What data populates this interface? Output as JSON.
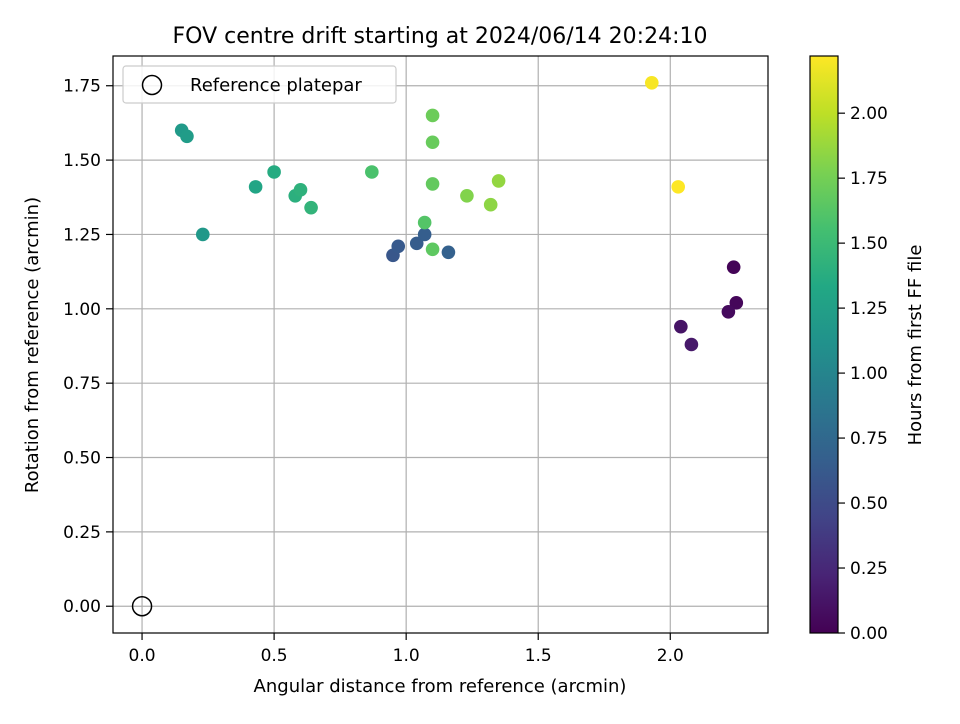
{
  "chart_data": {
    "type": "scatter",
    "title": "FOV centre drift starting at 2024/06/14 20:24:10",
    "xlabel": "Angular distance from reference (arcmin)",
    "ylabel": "Rotation from reference (arcmin)",
    "xlim": [
      -0.11,
      2.37
    ],
    "ylim": [
      -0.09,
      1.85
    ],
    "xticks": [
      "0.0",
      "0.5",
      "1.0",
      "1.5",
      "2.0"
    ],
    "xtick_values": [
      0.0,
      0.5,
      1.0,
      1.5,
      2.0
    ],
    "yticks": [
      "0.00",
      "0.25",
      "0.50",
      "0.75",
      "1.00",
      "1.25",
      "1.50",
      "1.75"
    ],
    "ytick_values": [
      0.0,
      0.25,
      0.5,
      0.75,
      1.0,
      1.25,
      1.5,
      1.75
    ],
    "grid": true,
    "legend": {
      "placement": "upper-left",
      "label": "Reference platepar"
    },
    "reference": {
      "x": 0.0,
      "y": 0.0
    },
    "colorbar": {
      "label": "Hours from first FF file",
      "range": [
        0.0,
        2.22
      ],
      "ticks": [
        "0.00",
        "0.25",
        "0.50",
        "0.75",
        "1.00",
        "1.25",
        "1.50",
        "1.75",
        "2.00"
      ],
      "tick_values": [
        0.0,
        0.25,
        0.5,
        0.75,
        1.0,
        1.25,
        1.5,
        1.75,
        2.0
      ],
      "colormap": "viridis"
    },
    "points": [
      {
        "x": 2.24,
        "y": 1.14,
        "c": 0.02
      },
      {
        "x": 2.25,
        "y": 1.02,
        "c": 0.04
      },
      {
        "x": 2.22,
        "y": 0.99,
        "c": 0.06
      },
      {
        "x": 2.04,
        "y": 0.94,
        "c": 0.12
      },
      {
        "x": 2.08,
        "y": 0.88,
        "c": 0.15
      },
      {
        "x": 0.95,
        "y": 1.18,
        "c": 0.6
      },
      {
        "x": 0.97,
        "y": 1.21,
        "c": 0.62
      },
      {
        "x": 1.04,
        "y": 1.22,
        "c": 0.64
      },
      {
        "x": 1.07,
        "y": 1.25,
        "c": 0.66
      },
      {
        "x": 1.16,
        "y": 1.19,
        "c": 0.68
      },
      {
        "x": 0.23,
        "y": 1.25,
        "c": 1.18
      },
      {
        "x": 0.15,
        "y": 1.6,
        "c": 1.2
      },
      {
        "x": 0.17,
        "y": 1.58,
        "c": 1.22
      },
      {
        "x": 0.43,
        "y": 1.41,
        "c": 1.3
      },
      {
        "x": 0.5,
        "y": 1.46,
        "c": 1.36
      },
      {
        "x": 0.58,
        "y": 1.38,
        "c": 1.4
      },
      {
        "x": 0.6,
        "y": 1.4,
        "c": 1.42
      },
      {
        "x": 0.64,
        "y": 1.34,
        "c": 1.44
      },
      {
        "x": 0.87,
        "y": 1.46,
        "c": 1.58
      },
      {
        "x": 1.07,
        "y": 1.29,
        "c": 1.62
      },
      {
        "x": 1.1,
        "y": 1.2,
        "c": 1.66
      },
      {
        "x": 1.1,
        "y": 1.42,
        "c": 1.68
      },
      {
        "x": 1.1,
        "y": 1.56,
        "c": 1.7
      },
      {
        "x": 1.1,
        "y": 1.65,
        "c": 1.72
      },
      {
        "x": 1.23,
        "y": 1.38,
        "c": 1.8
      },
      {
        "x": 1.32,
        "y": 1.35,
        "c": 1.84
      },
      {
        "x": 1.35,
        "y": 1.43,
        "c": 1.86
      },
      {
        "x": 1.93,
        "y": 1.76,
        "c": 2.2
      },
      {
        "x": 2.03,
        "y": 1.41,
        "c": 2.22
      }
    ]
  }
}
